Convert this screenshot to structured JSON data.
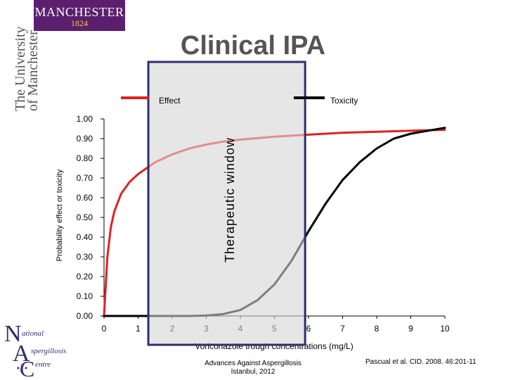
{
  "header": {
    "logo_name": "MANCHESTER",
    "logo_year": "1824",
    "side_text": [
      "The University",
      "of Manchester"
    ],
    "title": "Clinical IPA"
  },
  "chart_data": {
    "type": "line",
    "xlabel": "Voriconazole trough concentrations (mg/L)",
    "ylabel": "Probability effect or toxicity",
    "x_ticks": [
      "0",
      "1",
      "2",
      "3",
      "4",
      "5",
      "6",
      "7",
      "8",
      "9",
      "10"
    ],
    "y_ticks": [
      "0.00",
      "0.10",
      "0.20",
      "0.30",
      "0.40",
      "0.50",
      "0.60",
      "0.70",
      "0.80",
      "0.90",
      "1.00"
    ],
    "xlim": [
      0,
      10
    ],
    "ylim": [
      0,
      1
    ],
    "grid": false,
    "legend_position": "top",
    "series": [
      {
        "name": "Effect",
        "color": "#dd2222",
        "points": [
          [
            0,
            0.0
          ],
          [
            0.1,
            0.3
          ],
          [
            0.2,
            0.45
          ],
          [
            0.3,
            0.53
          ],
          [
            0.5,
            0.62
          ],
          [
            0.75,
            0.68
          ],
          [
            1.0,
            0.72
          ],
          [
            1.25,
            0.75
          ],
          [
            1.5,
            0.78
          ],
          [
            2.0,
            0.82
          ],
          [
            2.5,
            0.85
          ],
          [
            3.0,
            0.87
          ],
          [
            3.5,
            0.885
          ],
          [
            4.0,
            0.895
          ],
          [
            5.0,
            0.91
          ],
          [
            6.0,
            0.92
          ],
          [
            7.0,
            0.93
          ],
          [
            8.0,
            0.935
          ],
          [
            9.0,
            0.94
          ],
          [
            10.0,
            0.945
          ]
        ]
      },
      {
        "name": "Toxicity",
        "color": "#000000",
        "points": [
          [
            0,
            0.0
          ],
          [
            2.5,
            0.0
          ],
          [
            3.0,
            0.002
          ],
          [
            3.5,
            0.01
          ],
          [
            4.0,
            0.03
          ],
          [
            4.5,
            0.08
          ],
          [
            5.0,
            0.16
          ],
          [
            5.5,
            0.28
          ],
          [
            6.0,
            0.43
          ],
          [
            6.5,
            0.57
          ],
          [
            7.0,
            0.69
          ],
          [
            7.5,
            0.78
          ],
          [
            8.0,
            0.85
          ],
          [
            8.5,
            0.9
          ],
          [
            9.0,
            0.925
          ],
          [
            9.5,
            0.94
          ],
          [
            10.0,
            0.955
          ]
        ]
      }
    ],
    "highlight": {
      "label": "Therapeutic window",
      "x_range": [
        1.3,
        5.9
      ]
    }
  },
  "footer": {
    "center": [
      "Advances Against Aspergillosis",
      "Istanbul, 2012"
    ],
    "right": "Pascual et al. CID. 2008. 46:201-11",
    "nac_logo": [
      "ational",
      "spergillosis",
      "entre"
    ]
  },
  "colors": {
    "logo_purple": "#5b1f6e",
    "logo_gold": "#f2c84b",
    "title_gray": "#555555",
    "window_border": "#2e2f6b"
  }
}
